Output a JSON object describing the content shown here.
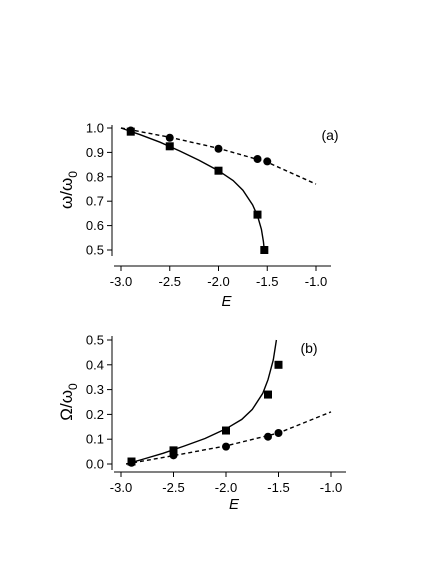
{
  "chart_data": [
    {
      "type": "scatter",
      "panel_label": "(a)",
      "xlabel": "E",
      "ylabel_main": "ω/ω",
      "ylabel_sub": "0",
      "xlim": [
        -3.0,
        -1.0
      ],
      "ylim": [
        0.45,
        1.0
      ],
      "x_ticks": [
        -3.0,
        -2.5,
        -2.0,
        -1.5,
        -1.0
      ],
      "x_tick_labels": [
        "-3.0",
        "-2.5",
        "-2.0",
        "-1.5",
        "-1.0"
      ],
      "y_ticks": [
        0.5,
        0.6,
        0.7,
        0.8,
        0.9,
        1.0
      ],
      "y_tick_labels": [
        "0.5",
        "0.6",
        "0.7",
        "0.8",
        "0.9",
        "1.0"
      ],
      "grid": false,
      "series": [
        {
          "marker": "square",
          "line": "solid",
          "points": [
            {
              "x": -2.9,
              "y": 0.985
            },
            {
              "x": -2.5,
              "y": 0.925
            },
            {
              "x": -2.0,
              "y": 0.825
            },
            {
              "x": -1.6,
              "y": 0.645
            },
            {
              "x": -1.53,
              "y": 0.5
            }
          ],
          "curve": [
            {
              "x": -3.0,
              "y": 1.0
            },
            {
              "x": -2.8,
              "y": 0.972
            },
            {
              "x": -2.6,
              "y": 0.942
            },
            {
              "x": -2.4,
              "y": 0.906
            },
            {
              "x": -2.2,
              "y": 0.868
            },
            {
              "x": -2.0,
              "y": 0.825
            },
            {
              "x": -1.85,
              "y": 0.785
            },
            {
              "x": -1.75,
              "y": 0.745
            },
            {
              "x": -1.65,
              "y": 0.685
            },
            {
              "x": -1.6,
              "y": 0.64
            },
            {
              "x": -1.56,
              "y": 0.585
            },
            {
              "x": -1.54,
              "y": 0.535
            },
            {
              "x": -1.53,
              "y": 0.5
            }
          ]
        },
        {
          "marker": "circle",
          "line": "dashed",
          "points": [
            {
              "x": -2.9,
              "y": 0.99
            },
            {
              "x": -2.5,
              "y": 0.96
            },
            {
              "x": -2.0,
              "y": 0.915
            },
            {
              "x": -1.6,
              "y": 0.873
            },
            {
              "x": -1.5,
              "y": 0.863
            }
          ],
          "curve": [
            {
              "x": -3.0,
              "y": 1.0
            },
            {
              "x": -2.5,
              "y": 0.962
            },
            {
              "x": -2.0,
              "y": 0.917
            },
            {
              "x": -1.5,
              "y": 0.86
            },
            {
              "x": -1.0,
              "y": 0.77
            }
          ]
        }
      ]
    },
    {
      "type": "scatter",
      "panel_label": "(b)",
      "xlabel": "E",
      "ylabel_main": "Ω/ω",
      "ylabel_sub": "0",
      "xlim": [
        -3.0,
        -1.0
      ],
      "ylim": [
        0.0,
        0.5
      ],
      "x_ticks": [
        -3.0,
        -2.5,
        -2.0,
        -1.5,
        -1.0
      ],
      "x_tick_labels": [
        "-3.0",
        "-2.5",
        "-2.0",
        "-1.5",
        "-1.0"
      ],
      "y_ticks": [
        0.0,
        0.1,
        0.2,
        0.3,
        0.4,
        0.5
      ],
      "y_tick_labels": [
        "0.0",
        "0.1",
        "0.2",
        "0.3",
        "0.4",
        "0.5"
      ],
      "grid": false,
      "series": [
        {
          "marker": "square",
          "line": "solid",
          "points": [
            {
              "x": -2.9,
              "y": 0.01
            },
            {
              "x": -2.5,
              "y": 0.055
            },
            {
              "x": -2.0,
              "y": 0.135
            },
            {
              "x": -1.6,
              "y": 0.28
            },
            {
              "x": -1.5,
              "y": 0.4
            }
          ],
          "curve": [
            {
              "x": -2.95,
              "y": 0.0
            },
            {
              "x": -2.8,
              "y": 0.018
            },
            {
              "x": -2.6,
              "y": 0.043
            },
            {
              "x": -2.4,
              "y": 0.072
            },
            {
              "x": -2.2,
              "y": 0.103
            },
            {
              "x": -2.0,
              "y": 0.142
            },
            {
              "x": -1.85,
              "y": 0.18
            },
            {
              "x": -1.75,
              "y": 0.22
            },
            {
              "x": -1.65,
              "y": 0.285
            },
            {
              "x": -1.6,
              "y": 0.34
            },
            {
              "x": -1.55,
              "y": 0.42
            },
            {
              "x": -1.52,
              "y": 0.5
            }
          ]
        },
        {
          "marker": "circle",
          "line": "dashed",
          "points": [
            {
              "x": -2.9,
              "y": 0.005
            },
            {
              "x": -2.5,
              "y": 0.035
            },
            {
              "x": -2.0,
              "y": 0.07
            },
            {
              "x": -1.6,
              "y": 0.11
            },
            {
              "x": -1.5,
              "y": 0.125
            }
          ],
          "curve": [
            {
              "x": -2.95,
              "y": 0.0
            },
            {
              "x": -2.5,
              "y": 0.034
            },
            {
              "x": -2.0,
              "y": 0.073
            },
            {
              "x": -1.5,
              "y": 0.125
            },
            {
              "x": -1.0,
              "y": 0.21
            }
          ]
        }
      ]
    }
  ]
}
